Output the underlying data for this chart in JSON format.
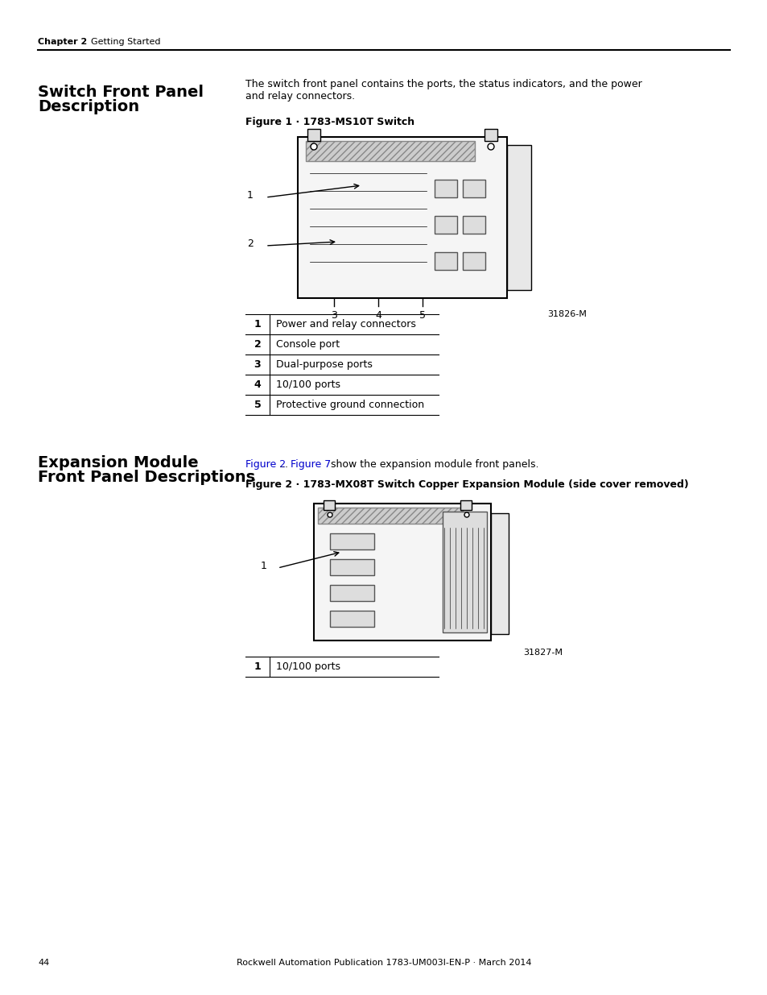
{
  "page_bg": "#ffffff",
  "header_text_bold": "Chapter 2",
  "header_text_normal": "    Getting Started",
  "footer_page": "44",
  "footer_center": "Rockwell Automation Publication 1783-UM003I-EN-P · March 2014",
  "section1_title": "Switch Front Panel\nDescription",
  "section1_body": "The switch front panel contains the ports, the status indicators, and the power\nand relay connectors.",
  "fig1_caption": "Figure 1 · 1783-MS10T Switch",
  "fig1_label": "31826-M",
  "fig1_callouts": [
    "1",
    "2",
    "3",
    "4",
    "5"
  ],
  "table1_rows": [
    [
      "1",
      "Power and relay connectors"
    ],
    [
      "2",
      "Console port"
    ],
    [
      "3",
      "Dual-purpose ports"
    ],
    [
      "4",
      "10/100 ports"
    ],
    [
      "5",
      "Protective ground connection"
    ]
  ],
  "section2_title": "Expansion Module\nFront Panel Descriptions",
  "section2_body_pre": "",
  "section2_body_link1": "Figure 2",
  "section2_body_mid": "...",
  "section2_body_link2": "Figure 7",
  "section2_body_post": " show the expansion module front panels.",
  "fig2_caption": "Figure 2 · 1783-MX08T Switch Copper Expansion Module (side cover removed)",
  "fig2_label": "31827-M",
  "fig2_callouts": [
    "1"
  ],
  "table2_rows": [
    [
      "1",
      "10/100 ports"
    ]
  ]
}
